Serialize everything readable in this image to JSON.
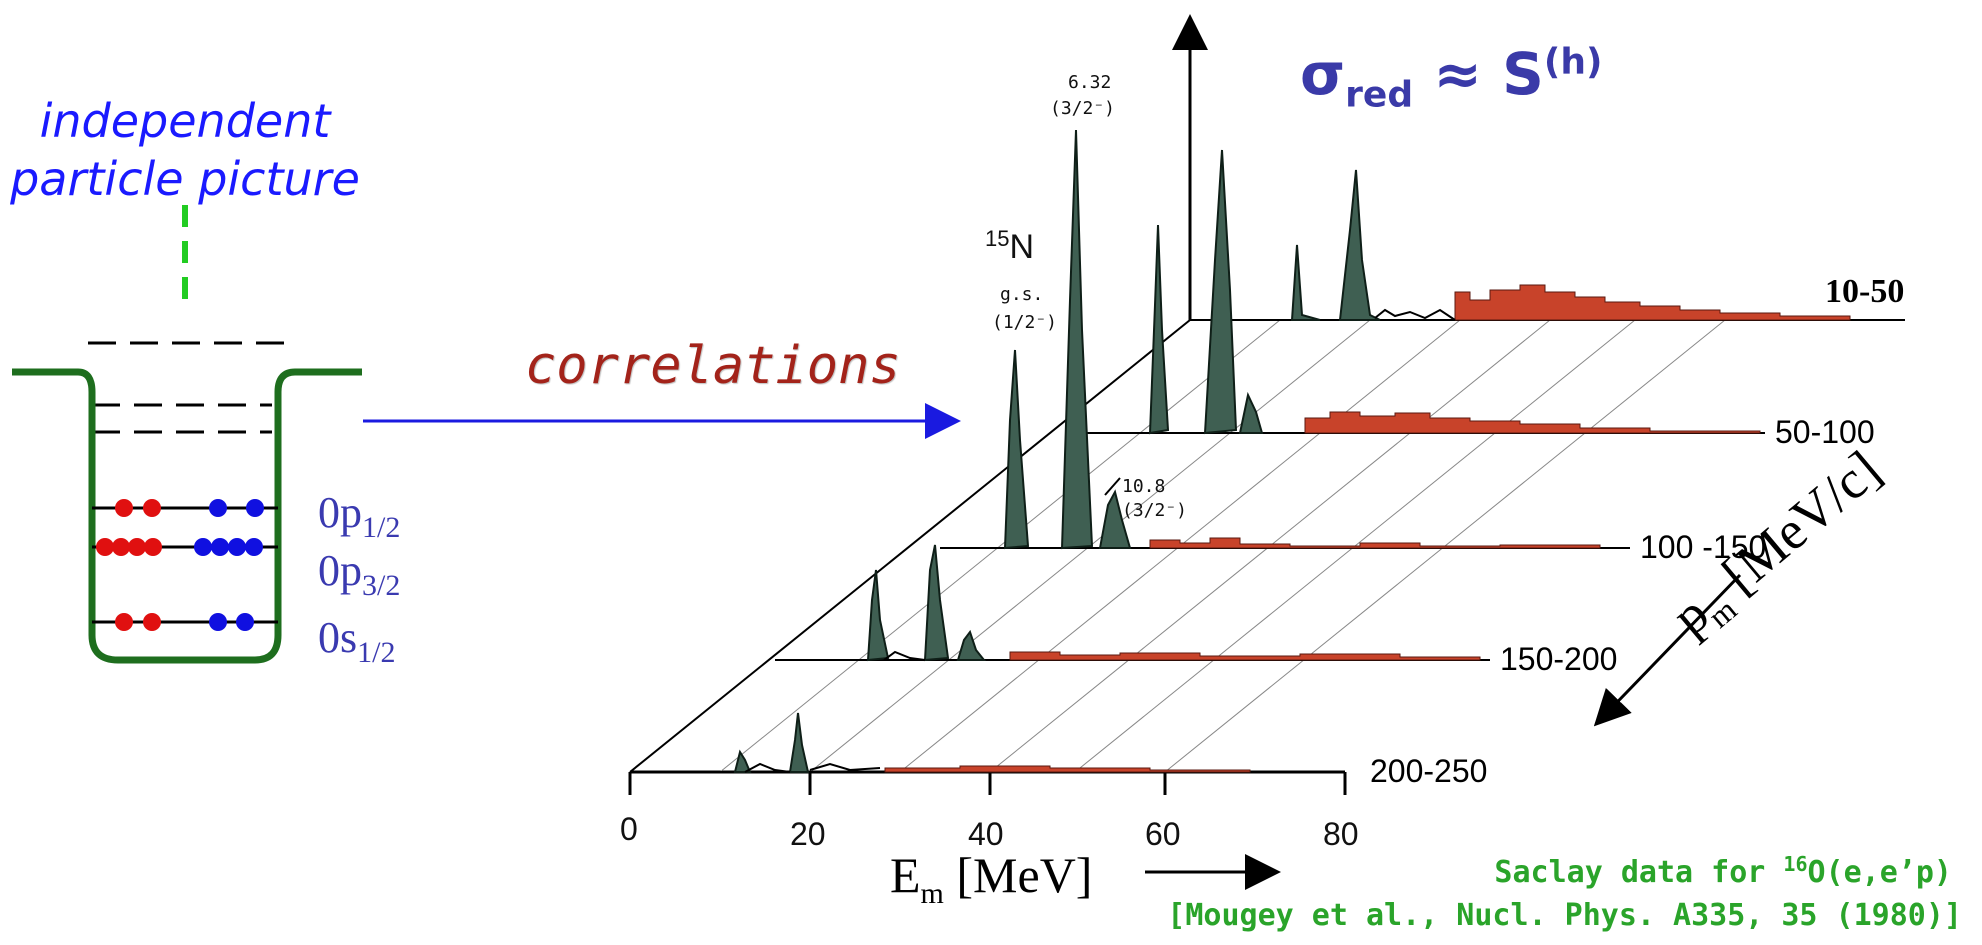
{
  "left": {
    "title_line1": "independent",
    "title_line2": "particle picture",
    "levels": [
      {
        "label_main": "0p",
        "label_sub": "1/2"
      },
      {
        "label_main": "0p",
        "label_sub": "3/2"
      },
      {
        "label_main": "0s",
        "label_sub": "1/2"
      }
    ],
    "colors": {
      "well": "#1e6e1e",
      "protons": "#e01010",
      "neutrons": "#1010e0",
      "dashed": "#22cc22"
    }
  },
  "middle": {
    "correlations": "correlations"
  },
  "formula": {
    "sigma": "σ",
    "sub": "red",
    "approx": "≈",
    "S": "S",
    "sup": "(h)"
  },
  "plot": {
    "nucleus_mass": "15",
    "nucleus_symbol": "N",
    "gs_label": "g.s.",
    "gs_jpi": "(1/2⁻)",
    "peak2_energy": "6.32",
    "peak2_jpi": "(3/2⁻)",
    "peak3_energy": "10.8",
    "peak3_jpi": "(3/2⁻)",
    "x_ticks": [
      "0",
      "20",
      "40",
      "60",
      "80"
    ],
    "pm_bins": [
      "10-50",
      "50-100",
      "100 -150",
      "150-200",
      "200-250"
    ],
    "x_axis_main": "E",
    "x_axis_sub": "m",
    "x_axis_unit": "[MeV]",
    "pm_axis_main": "p",
    "pm_axis_sub": "m",
    "pm_axis_unit": "[MeV/c]",
    "colors": {
      "peaks": "#3f5f52",
      "continuum": "#c8432a"
    }
  },
  "credit": {
    "line1_pre": "Saclay data for ",
    "line1_sup": "16",
    "line1_post": "O(e,e’p)",
    "line2": "[Mougey et al., Nucl. Phys. A335, 35 (1980)]"
  }
}
